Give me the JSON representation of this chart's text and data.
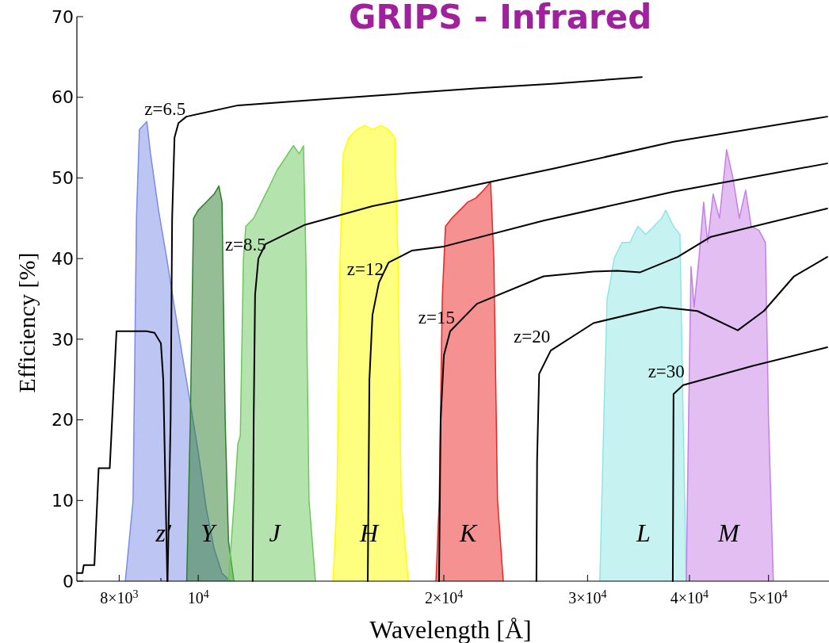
{
  "chart_data": {
    "type": "line",
    "title": "GRIPS - Infrared",
    "xlabel": "Wavelength [Å]",
    "ylabel": "Efficiency [%]",
    "log": "x",
    "xlim": [
      7100,
      59300
    ],
    "ylim": [
      0,
      70
    ],
    "xticks": [
      {
        "value": 8000,
        "label": "8×10$^{3}$"
      },
      {
        "value": 9000,
        "label": null
      },
      {
        "value": 10000,
        "label": "10$^{4}$"
      },
      {
        "value": 20000,
        "label": "2×10$^{4}$"
      },
      {
        "value": 30000,
        "label": "3×10$^{4}$"
      },
      {
        "value": 40000,
        "label": "4×10$^{4}$"
      },
      {
        "value": 50000,
        "label": "5×10$^{4}$"
      }
    ],
    "yticks": [
      0,
      10,
      20,
      30,
      40,
      50,
      60,
      70
    ],
    "series": [
      {
        "type": "area",
        "name": "z′",
        "color": "#7b8be6",
        "x": [
          8140,
          8320,
          8400,
          8470,
          8650,
          8740,
          8940,
          9150,
          9350,
          9560,
          9780,
          10000,
          10230,
          10460,
          10690,
          10940
        ],
        "values": [
          0,
          10,
          45,
          56,
          57,
          53,
          46,
          40,
          34,
          28,
          22,
          16,
          9,
          4,
          1,
          0
        ]
      },
      {
        "type": "area",
        "name": "Y",
        "color": "#2e7d2e",
        "x": [
          9680,
          9779,
          9867,
          10000,
          10226,
          10457,
          10600,
          10694,
          10790,
          10890,
          11060
        ],
        "values": [
          0,
          20,
          45,
          46,
          47,
          48,
          49,
          47,
          20,
          5,
          0
        ]
      },
      {
        "type": "area",
        "name": "J",
        "color": "#6cc85c",
        "x": [
          10890,
          11070,
          11183,
          11260,
          11360,
          11436,
          11694,
          11959,
          12229,
          12500,
          12790,
          13080,
          13300,
          13460,
          13550,
          13670,
          13920
        ],
        "values": [
          0,
          10,
          17,
          18,
          40,
          44,
          45,
          47,
          49,
          51,
          52.5,
          54,
          53,
          54,
          40,
          10,
          0
        ]
      },
      {
        "type": "area",
        "name": "H",
        "color": "#ffff00",
        "x": [
          14627,
          14790,
          14920,
          15060,
          15296,
          15640,
          15996,
          16360,
          16728,
          17110,
          17410,
          17570,
          17730,
          18090
        ],
        "values": [
          0,
          10,
          40,
          53,
          55,
          56,
          56.5,
          56,
          56.5,
          56,
          55,
          40,
          10,
          0
        ]
      },
      {
        "type": "area",
        "name": "K",
        "color": "#ee2424",
        "x": [
          19560,
          19740,
          19910,
          20090,
          20450,
          20920,
          21390,
          21880,
          22380,
          22820,
          23030,
          23270,
          23650
        ],
        "values": [
          0,
          10,
          35,
          44,
          45,
          46,
          47,
          47.5,
          48.5,
          49.5,
          40,
          10,
          0
        ]
      },
      {
        "type": "area",
        "name": "L",
        "color": "#8ee6e6",
        "x": [
          31060,
          31410,
          31700,
          31980,
          32340,
          33060,
          33810,
          34580,
          35360,
          36160,
          36980,
          37400,
          38240,
          38940,
          39290,
          39640
        ],
        "values": [
          0,
          20,
          35,
          37,
          40,
          42,
          42,
          44,
          43,
          44,
          45,
          46,
          44,
          43,
          20,
          0
        ]
      },
      {
        "type": "area",
        "name": "M",
        "color": "#c67ee8",
        "x": [
          39640,
          39900,
          40170,
          40530,
          41080,
          41630,
          42100,
          42760,
          43530,
          44420,
          45220,
          46040,
          46870,
          47610,
          48680,
          49560,
          50000,
          50680
        ],
        "values": [
          0,
          20,
          39,
          34,
          40,
          47,
          42,
          48,
          45,
          53.5,
          50,
          45,
          48.5,
          44,
          43.5,
          42,
          20,
          0
        ]
      },
      {
        "color": "#000000",
        "x": [
          7100,
          7213,
          7240,
          7460,
          7550,
          7790,
          7940,
          8646,
          8840,
          9000,
          9060,
          9165
        ],
        "values": [
          1,
          1,
          2,
          2,
          14,
          14,
          31,
          31,
          30.8,
          29.5,
          25,
          0
        ]
      },
      {
        "name": "z=6.5",
        "color": "#000000",
        "x": [
          9170,
          9250,
          9290,
          9352,
          9457,
          9670,
          11183,
          13987,
          17490,
          21880,
          27360,
          34970
        ],
        "values": [
          0,
          20,
          45,
          55,
          56.8,
          57.6,
          59,
          59.7,
          60.4,
          61.1,
          61.7,
          62.5
        ]
      },
      {
        "name": "z=8.5",
        "color": "#000000",
        "x": [
          11660,
          11694,
          11740,
          11850,
          12090,
          13520,
          16350,
          20000,
          27360,
          38240,
          59000
        ],
        "values": [
          0,
          20,
          35.5,
          40,
          41.8,
          44.2,
          46.5,
          48.3,
          51.2,
          54.5,
          57.6
        ]
      },
      {
        "name": "z=12",
        "color": "#000000",
        "x": [
          16135,
          16210,
          16350,
          16650,
          17110,
          18294,
          20000,
          26500,
          38240,
          59000
        ],
        "values": [
          0,
          25,
          33,
          37,
          39.5,
          41,
          41.5,
          44.7,
          48.3,
          51.8
        ]
      },
      {
        "name": "z=15",
        "color": "#000000",
        "x": [
          19730,
          19820,
          20000,
          20360,
          21960,
          26500,
          30510,
          32630,
          34810,
          38680,
          42490,
          59000
        ],
        "values": [
          0,
          20,
          28,
          31,
          34.4,
          37.8,
          38.4,
          38.5,
          38.3,
          40.2,
          42.7,
          46.2
        ]
      },
      {
        "name": "z=20",
        "color": "#000000",
        "x": [
          25970,
          26020,
          26170,
          27040,
          30510,
          36900,
          40900,
          45840,
          49340,
          53730,
          59000
        ],
        "values": [
          0,
          15,
          25.7,
          28.6,
          32,
          34,
          33.5,
          31.1,
          33.5,
          37.8,
          40.2
        ]
      },
      {
        "name": "z=30",
        "color": "#000000",
        "x": [
          38160,
          38240,
          39290,
          47810,
          59000
        ],
        "values": [
          0,
          23.2,
          24.3,
          26.7,
          29
        ]
      }
    ]
  }
}
